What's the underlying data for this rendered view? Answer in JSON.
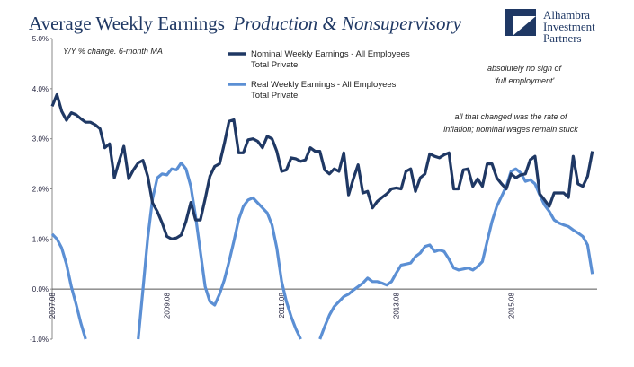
{
  "title_main": "Average Weekly Earnings",
  "title_italic": "Production & Nonsupervisory",
  "subtitle": "Y/Y % change. 6-month MA",
  "brand": {
    "line1": "Alhambra",
    "line2": "Investment",
    "line3": "Partners"
  },
  "annotations": [
    {
      "line1": "absolutely no sign of",
      "line2": "'full employment'"
    },
    {
      "line1": "all that changed was the rate of",
      "line2": "inflation; nominal wages remain stuck"
    }
  ],
  "colors": {
    "nominal": "#1f3864",
    "real": "#5b8fd4",
    "title": "#1f3864"
  },
  "chart_data": {
    "type": "line",
    "title": "Average Weekly Earnings Production & Nonsupervisory",
    "subtitle": "Y/Y % change. 6-month MA",
    "ylim": [
      -1.0,
      5.0
    ],
    "y_ticks": [
      "-1.0%",
      "0.0%",
      "1.0%",
      "2.0%",
      "3.0%",
      "4.0%",
      "5.0%"
    ],
    "y_tick_values": [
      -1,
      0,
      1,
      2,
      3,
      4,
      5
    ],
    "x_ticks": [
      "2007.08",
      "2009.08",
      "2011.08",
      "2013.08",
      "2015.08"
    ],
    "x_tick_values": [
      0,
      24,
      48,
      72,
      96
    ],
    "xlim": [
      0,
      114
    ],
    "grid": false,
    "legend": "top-center",
    "series": [
      {
        "name": "Nominal Weekly Earnings - All Employees Total Private",
        "points": [
          [
            0,
            3.65
          ],
          [
            1,
            3.88
          ],
          [
            2,
            3.55
          ],
          [
            3,
            3.37
          ],
          [
            4,
            3.52
          ],
          [
            5,
            3.48
          ],
          [
            6,
            3.4
          ],
          [
            7,
            3.33
          ],
          [
            8,
            3.33
          ],
          [
            9,
            3.28
          ],
          [
            10,
            3.2
          ],
          [
            11,
            2.82
          ],
          [
            12,
            2.9
          ],
          [
            13,
            2.22
          ],
          [
            14,
            2.55
          ],
          [
            15,
            2.85
          ],
          [
            16,
            2.2
          ],
          [
            17,
            2.38
          ],
          [
            18,
            2.52
          ],
          [
            19,
            2.57
          ],
          [
            20,
            2.25
          ],
          [
            21,
            1.72
          ],
          [
            22,
            1.55
          ],
          [
            23,
            1.32
          ],
          [
            24,
            1.05
          ],
          [
            25,
            1.0
          ],
          [
            26,
            1.02
          ],
          [
            27,
            1.08
          ],
          [
            28,
            1.35
          ],
          [
            29,
            1.73
          ],
          [
            30,
            1.38
          ],
          [
            31,
            1.38
          ],
          [
            32,
            1.8
          ],
          [
            33,
            2.25
          ],
          [
            34,
            2.45
          ],
          [
            35,
            2.5
          ],
          [
            36,
            2.9
          ],
          [
            37,
            3.35
          ],
          [
            38,
            3.38
          ],
          [
            39,
            2.72
          ],
          [
            40,
            2.72
          ],
          [
            41,
            2.98
          ],
          [
            42,
            3.0
          ],
          [
            43,
            2.95
          ],
          [
            44,
            2.82
          ],
          [
            45,
            3.05
          ],
          [
            46,
            3.0
          ],
          [
            47,
            2.75
          ],
          [
            48,
            2.35
          ],
          [
            49,
            2.38
          ],
          [
            50,
            2.62
          ],
          [
            51,
            2.6
          ],
          [
            52,
            2.55
          ],
          [
            53,
            2.58
          ],
          [
            54,
            2.82
          ],
          [
            55,
            2.75
          ],
          [
            56,
            2.75
          ],
          [
            57,
            2.38
          ],
          [
            58,
            2.3
          ],
          [
            59,
            2.4
          ],
          [
            60,
            2.35
          ],
          [
            61,
            2.72
          ],
          [
            62,
            1.88
          ],
          [
            63,
            2.2
          ],
          [
            64,
            2.48
          ],
          [
            65,
            1.92
          ],
          [
            66,
            1.95
          ],
          [
            67,
            1.62
          ],
          [
            68,
            1.75
          ],
          [
            69,
            1.83
          ],
          [
            70,
            1.9
          ],
          [
            71,
            2.0
          ],
          [
            72,
            2.02
          ],
          [
            73,
            2.0
          ],
          [
            74,
            2.35
          ],
          [
            75,
            2.4
          ],
          [
            76,
            1.95
          ],
          [
            77,
            2.22
          ],
          [
            78,
            2.3
          ],
          [
            79,
            2.7
          ],
          [
            80,
            2.65
          ],
          [
            81,
            2.62
          ],
          [
            82,
            2.68
          ],
          [
            83,
            2.72
          ],
          [
            84,
            2.0
          ],
          [
            85,
            2.0
          ],
          [
            86,
            2.38
          ],
          [
            87,
            2.4
          ],
          [
            88,
            2.05
          ],
          [
            89,
            2.2
          ],
          [
            90,
            2.05
          ],
          [
            91,
            2.5
          ],
          [
            92,
            2.5
          ],
          [
            93,
            2.22
          ],
          [
            94,
            2.1
          ],
          [
            95,
            2.0
          ],
          [
            96,
            2.3
          ],
          [
            97,
            2.22
          ],
          [
            98,
            2.28
          ],
          [
            99,
            2.3
          ],
          [
            100,
            2.58
          ],
          [
            101,
            2.65
          ],
          [
            102,
            1.9
          ],
          [
            103,
            1.78
          ],
          [
            104,
            1.65
          ],
          [
            105,
            1.92
          ],
          [
            106,
            1.92
          ],
          [
            107,
            1.92
          ],
          [
            108,
            1.83
          ],
          [
            109,
            2.65
          ],
          [
            110,
            2.1
          ],
          [
            111,
            2.05
          ],
          [
            112,
            2.25
          ],
          [
            113,
            2.75
          ]
        ]
      },
      {
        "name": "Real Weekly Earnings - All Employees Total Private",
        "points": [
          [
            0,
            1.1
          ],
          [
            1,
            1.0
          ],
          [
            2,
            0.82
          ],
          [
            3,
            0.5
          ],
          [
            4,
            0.05
          ],
          [
            5,
            -0.3
          ],
          [
            6,
            -0.68
          ],
          [
            7,
            -1.0
          ],
          [
            18,
            -1.0
          ],
          [
            19,
            0.0
          ],
          [
            20,
            1.02
          ],
          [
            21,
            1.8
          ],
          [
            22,
            2.22
          ],
          [
            23,
            2.3
          ],
          [
            24,
            2.28
          ],
          [
            25,
            2.4
          ],
          [
            26,
            2.38
          ],
          [
            27,
            2.52
          ],
          [
            28,
            2.4
          ],
          [
            29,
            2.05
          ],
          [
            30,
            1.45
          ],
          [
            31,
            0.75
          ],
          [
            32,
            0.05
          ],
          [
            33,
            -0.25
          ],
          [
            34,
            -0.32
          ],
          [
            35,
            -0.1
          ],
          [
            36,
            0.18
          ],
          [
            37,
            0.55
          ],
          [
            38,
            0.95
          ],
          [
            39,
            1.38
          ],
          [
            40,
            1.65
          ],
          [
            41,
            1.78
          ],
          [
            42,
            1.82
          ],
          [
            43,
            1.72
          ],
          [
            44,
            1.62
          ],
          [
            45,
            1.52
          ],
          [
            46,
            1.28
          ],
          [
            47,
            0.82
          ],
          [
            48,
            0.15
          ],
          [
            49,
            -0.25
          ],
          [
            50,
            -0.55
          ],
          [
            51,
            -0.8
          ],
          [
            52,
            -1.0
          ],
          [
            56,
            -1.0
          ],
          [
            57,
            -0.75
          ],
          [
            58,
            -0.52
          ],
          [
            59,
            -0.35
          ],
          [
            60,
            -0.25
          ],
          [
            61,
            -0.15
          ],
          [
            62,
            -0.1
          ],
          [
            63,
            -0.02
          ],
          [
            64,
            0.05
          ],
          [
            65,
            0.12
          ],
          [
            66,
            0.22
          ],
          [
            67,
            0.15
          ],
          [
            68,
            0.15
          ],
          [
            69,
            0.12
          ],
          [
            70,
            0.08
          ],
          [
            71,
            0.15
          ],
          [
            72,
            0.32
          ],
          [
            73,
            0.48
          ],
          [
            74,
            0.5
          ],
          [
            75,
            0.52
          ],
          [
            76,
            0.65
          ],
          [
            77,
            0.72
          ],
          [
            78,
            0.85
          ],
          [
            79,
            0.88
          ],
          [
            80,
            0.75
          ],
          [
            81,
            0.78
          ],
          [
            82,
            0.75
          ],
          [
            83,
            0.6
          ],
          [
            84,
            0.42
          ],
          [
            85,
            0.38
          ],
          [
            86,
            0.4
          ],
          [
            87,
            0.42
          ],
          [
            88,
            0.38
          ],
          [
            89,
            0.45
          ],
          [
            90,
            0.55
          ],
          [
            91,
            0.95
          ],
          [
            92,
            1.35
          ],
          [
            93,
            1.65
          ],
          [
            94,
            1.85
          ],
          [
            95,
            2.05
          ],
          [
            96,
            2.35
          ],
          [
            97,
            2.4
          ],
          [
            98,
            2.32
          ],
          [
            99,
            2.15
          ],
          [
            100,
            2.18
          ],
          [
            101,
            2.1
          ],
          [
            102,
            1.88
          ],
          [
            103,
            1.68
          ],
          [
            104,
            1.55
          ],
          [
            105,
            1.38
          ],
          [
            106,
            1.32
          ],
          [
            107,
            1.28
          ],
          [
            108,
            1.25
          ],
          [
            109,
            1.18
          ],
          [
            110,
            1.12
          ],
          [
            111,
            1.05
          ],
          [
            112,
            0.88
          ],
          [
            113,
            0.3
          ]
        ]
      }
    ]
  }
}
